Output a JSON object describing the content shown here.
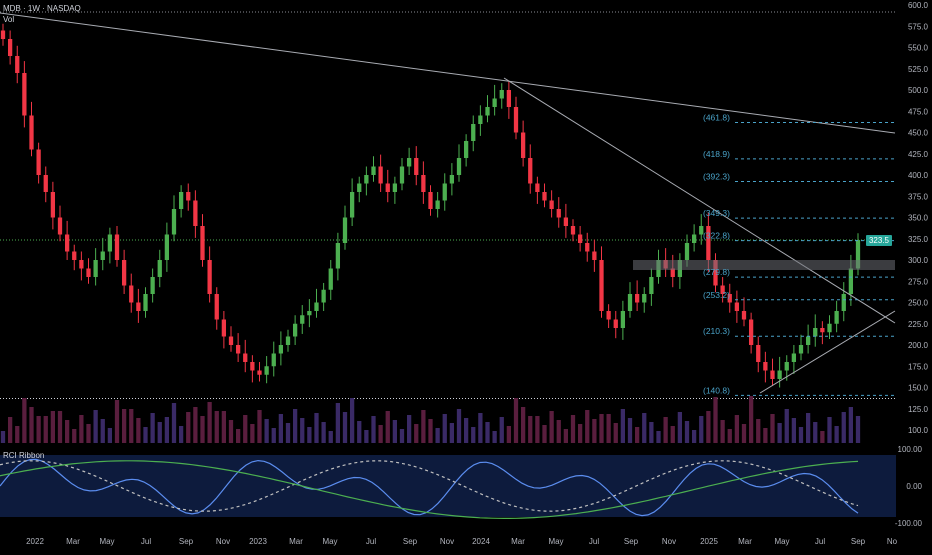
{
  "header": {
    "symbol_line": "MDB · 1W · NASDAQ",
    "volume_label": "Vol"
  },
  "oscillator": {
    "label": "RCI Ribbon",
    "axis": [
      "100.00",
      "0.00",
      "-100.00"
    ]
  },
  "last_price_badge": "323.5",
  "colors": {
    "background": "#000000",
    "up": "#4caf50",
    "down": "#f23645",
    "volume_up": "#3a2a66",
    "volume_down": "#5a1e3e",
    "fib": "#4aa3c9",
    "rci_fast": "#5b8def",
    "rci_slow": "#4caf50",
    "rci_mid": "#c0c0c0",
    "osc_background": "#0d1b3d"
  },
  "chart_data": {
    "type": "candlestick",
    "symbol": "MDB",
    "interval": "1W",
    "exchange": "NASDAQ",
    "price_axis": [
      "600.0",
      "575.0",
      "550.0",
      "525.0",
      "500.0",
      "475.0",
      "450.0",
      "425.0",
      "400.0",
      "375.0",
      "350.0",
      "325.0",
      "300.0",
      "275.0",
      "250.0",
      "225.0",
      "200.0",
      "175.0",
      "150.0",
      "125.0",
      "100.0"
    ],
    "ylim": [
      100,
      600
    ],
    "time_axis": [
      "2022",
      "Mar",
      "May",
      "Jul",
      "Sep",
      "Nov",
      "2023",
      "Mar",
      "May",
      "Jul",
      "Sep",
      "Nov",
      "2024",
      "Mar",
      "May",
      "Jul",
      "Sep",
      "Nov",
      "2025",
      "Mar",
      "May",
      "Jul",
      "Sep",
      "No"
    ],
    "fib_levels": [
      "(461.8)",
      "(418.9)",
      "(392.3)",
      "(349.3)",
      "(322.8)",
      "(279.8)",
      "(253.2)",
      "(210.3)",
      "(140.8)"
    ],
    "fib_values": [
      461.8,
      418.9,
      392.3,
      349.3,
      322.8,
      279.8,
      253.2,
      210.3,
      140.8
    ],
    "last_price": 323.5,
    "weekly_close_approx": [
      560,
      540,
      520,
      470,
      430,
      400,
      380,
      350,
      330,
      310,
      300,
      290,
      280,
      300,
      310,
      330,
      300,
      270,
      250,
      240,
      260,
      280,
      300,
      330,
      360,
      380,
      370,
      340,
      300,
      260,
      230,
      210,
      200,
      190,
      180,
      170,
      165,
      175,
      190,
      200,
      210,
      225,
      235,
      240,
      250,
      265,
      290,
      320,
      350,
      380,
      390,
      400,
      410,
      390,
      380,
      390,
      410,
      420,
      400,
      380,
      360,
      370,
      390,
      400,
      420,
      440,
      460,
      470,
      480,
      490,
      500,
      480,
      450,
      420,
      390,
      380,
      370,
      360,
      350,
      340,
      330,
      320,
      310,
      300,
      240,
      230,
      220,
      240,
      260,
      250,
      260,
      280,
      300,
      290,
      280,
      300,
      320,
      330,
      340,
      300,
      270,
      260,
      250,
      240,
      230,
      200,
      180,
      170,
      160,
      170,
      180,
      190,
      200,
      210,
      220,
      215,
      225,
      240,
      260,
      290,
      323.5
    ],
    "grid": false,
    "legend": "top-left"
  }
}
